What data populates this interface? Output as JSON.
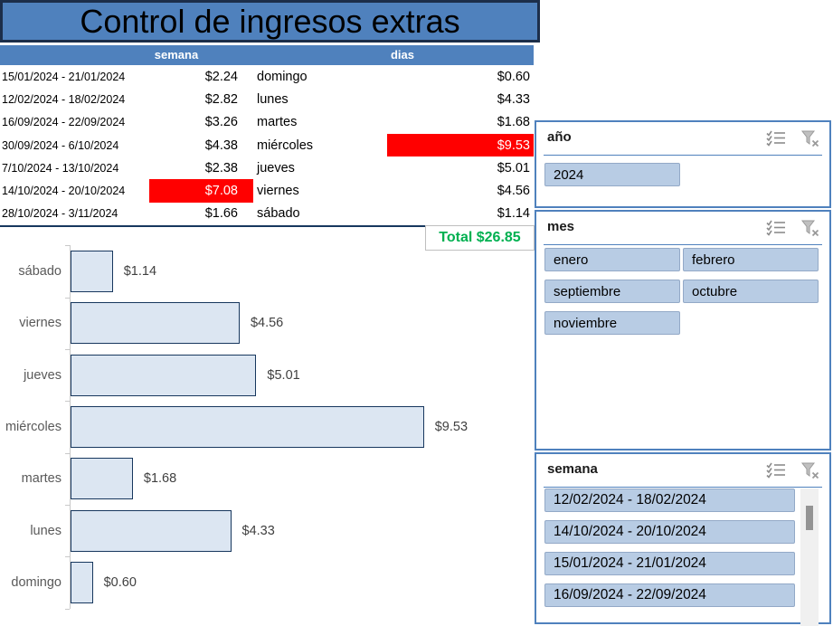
{
  "title": "Control de ingresos extras",
  "colors": {
    "accent_blue": "#4f81bd",
    "dark_navy_border": "#17375e",
    "bar_fill": "#dce6f2",
    "highlight_red": "#ff0000",
    "total_green": "#00b050",
    "slicer_item_bg": "#b8cce4"
  },
  "table": {
    "headers": [
      "semana",
      "dias"
    ],
    "rows": [
      {
        "week": "15/01/2024 - 21/01/2024",
        "amount": "$2.24",
        "amount_highlight": false,
        "day": "domingo",
        "day_amount": "$0.60",
        "day_amount_highlight": false
      },
      {
        "week": "12/02/2024 - 18/02/2024",
        "amount": "$2.82",
        "amount_highlight": false,
        "day": "lunes",
        "day_amount": "$4.33",
        "day_amount_highlight": false
      },
      {
        "week": "16/09/2024 - 22/09/2024",
        "amount": "$3.26",
        "amount_highlight": false,
        "day": "martes",
        "day_amount": "$1.68",
        "day_amount_highlight": false
      },
      {
        "week": "30/09/2024 - 6/10/2024",
        "amount": "$4.38",
        "amount_highlight": false,
        "day": "miércoles",
        "day_amount": "$9.53",
        "day_amount_highlight": true
      },
      {
        "week": "7/10/2024 - 13/10/2024",
        "amount": "$2.38",
        "amount_highlight": false,
        "day": "jueves",
        "day_amount": "$5.01",
        "day_amount_highlight": false
      },
      {
        "week": "14/10/2024 - 20/10/2024",
        "amount": "$7.08",
        "amount_highlight": true,
        "day": "viernes",
        "day_amount": "$4.56",
        "day_amount_highlight": false
      },
      {
        "week": "28/10/2024 - 3/11/2024",
        "amount": "$1.66",
        "amount_highlight": false,
        "day": "sábado",
        "day_amount": "$1.14",
        "day_amount_highlight": false
      }
    ],
    "total_label": "Total $26.85"
  },
  "chart_data": {
    "type": "bar",
    "orientation": "horizontal",
    "categories": [
      "sábado",
      "viernes",
      "jueves",
      "miércoles",
      "martes",
      "lunes",
      "domingo"
    ],
    "values": [
      1.14,
      4.56,
      5.01,
      9.53,
      1.68,
      4.33,
      0.6
    ],
    "value_labels": [
      "$1.14",
      "$4.56",
      "$5.01",
      "$9.53",
      "$1.68",
      "$4.33",
      "$0.60"
    ],
    "title": "",
    "xlabel": "",
    "ylabel": "",
    "xlim": [
      0,
      10.5
    ],
    "grid": false,
    "legend": "none",
    "value_label_position": "outside-end"
  },
  "slicers": [
    {
      "title": "año",
      "items": [
        {
          "label": "2024",
          "selected": true
        }
      ]
    },
    {
      "title": "mes",
      "items": [
        {
          "label": "enero",
          "selected": true
        },
        {
          "label": "febrero",
          "selected": true
        },
        {
          "label": "septiembre",
          "selected": true
        },
        {
          "label": "octubre",
          "selected": true
        },
        {
          "label": "noviembre",
          "selected": true
        }
      ]
    },
    {
      "title": "semana",
      "items": [
        {
          "label": "12/02/2024 - 18/02/2024",
          "selected": true
        },
        {
          "label": "14/10/2024 - 20/10/2024",
          "selected": true
        },
        {
          "label": "15/01/2024 - 21/01/2024",
          "selected": true
        },
        {
          "label": "16/09/2024 - 22/09/2024",
          "selected": true
        }
      ]
    }
  ],
  "icons": {
    "multi_select": "multi-select-icon",
    "clear_filter": "clear-filter-icon"
  }
}
